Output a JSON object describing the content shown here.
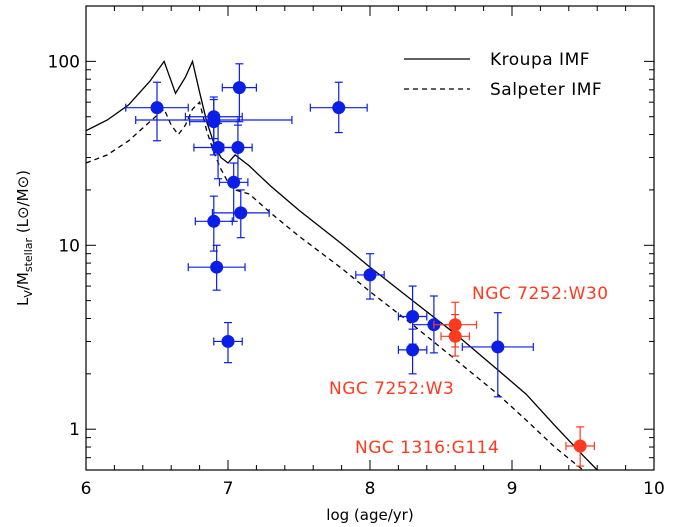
{
  "chart_data": {
    "type": "scatter",
    "xlabel": "log (age/yr)",
    "ylabel": {
      "main": "L",
      "sub_v": "V",
      "slash": "/M",
      "sub_stellar": "stellar",
      "units": "(L⊙/M⊙)"
    },
    "xlim": [
      6,
      10
    ],
    "ylim": [
      0.6,
      200
    ],
    "y_scale": "log",
    "x_ticks": [
      6,
      7,
      8,
      9,
      10
    ],
    "x_tick_labels": [
      "6",
      "7",
      "8",
      "9",
      "10"
    ],
    "y_ticks": [
      1,
      10,
      100
    ],
    "y_tick_labels": [
      "1",
      "10",
      "100"
    ],
    "legend": {
      "position": "top-right",
      "entries": [
        {
          "label": "Kroupa IMF",
          "style": "solid"
        },
        {
          "label": "Salpeter IMF",
          "style": "dashed"
        }
      ]
    },
    "lines": [
      {
        "name": "Kroupa IMF",
        "style": "solid",
        "x": [
          6.0,
          6.15,
          6.3,
          6.45,
          6.55,
          6.6,
          6.63,
          6.7,
          6.75,
          6.8,
          6.85,
          6.9,
          6.95,
          7.0,
          7.05,
          7.15,
          7.3,
          7.5,
          7.8,
          8.0,
          8.3,
          8.6,
          8.9,
          9.1,
          9.3,
          9.5,
          9.6
        ],
        "y": [
          42,
          48,
          58,
          78,
          100,
          78,
          67,
          82,
          100,
          68,
          47,
          36,
          30,
          28,
          31,
          27,
          21,
          15.5,
          10.2,
          7.6,
          5.0,
          3.3,
          2.1,
          1.55,
          1.05,
          0.72,
          0.6
        ]
      },
      {
        "name": "Salpeter IMF",
        "style": "dashed",
        "x": [
          6.0,
          6.15,
          6.3,
          6.45,
          6.55,
          6.6,
          6.65,
          6.7,
          6.75,
          6.8,
          6.85,
          6.9,
          6.95,
          7.0,
          7.05,
          7.15,
          7.3,
          7.5,
          7.8,
          8.0,
          8.3,
          8.6,
          8.9,
          9.1,
          9.3,
          9.5
        ],
        "y": [
          28,
          31,
          37,
          47,
          55,
          45,
          40,
          45,
          55,
          60,
          42,
          32,
          26,
          22,
          20,
          19,
          15,
          11.2,
          7.5,
          5.6,
          3.7,
          2.4,
          1.55,
          1.12,
          0.8,
          0.6
        ]
      }
    ],
    "series": [
      {
        "color": "#0a1ee6",
        "points": [
          {
            "x": 6.5,
            "y": 56,
            "xerr": 0.22,
            "ylo": 37,
            "yhi": 77
          },
          {
            "x": 7.08,
            "y": 72,
            "xerr": 0.12,
            "ylo": 47,
            "yhi": 97
          },
          {
            "x": 6.9,
            "y": 50,
            "xerr": 0.2,
            "ylo": 38,
            "yhi": 64
          },
          {
            "x": 6.9,
            "y": 47,
            "xerr": 0.17,
            "ylo": 31,
            "yhi": 62
          },
          {
            "x": 6.9,
            "y": 48,
            "xerr": 0.55,
            "ylo": 46,
            "yhi": 50
          },
          {
            "x": 7.78,
            "y": 56,
            "xerr": 0.2,
            "ylo": 41,
            "yhi": 77
          },
          {
            "x": 6.93,
            "y": 34,
            "xerr": 0.17,
            "ylo": 23,
            "yhi": 46
          },
          {
            "x": 7.07,
            "y": 34,
            "xerr": 0.1,
            "ylo": 23,
            "yhi": 45
          },
          {
            "x": 7.04,
            "y": 22,
            "xerr": 0.1,
            "ylo": 13.5,
            "yhi": 28
          },
          {
            "x": 6.9,
            "y": 13.5,
            "xerr": 0.13,
            "ylo": 9.3,
            "yhi": 18.5
          },
          {
            "x": 7.09,
            "y": 15,
            "xerr": 0.2,
            "ylo": 11,
            "yhi": 20
          },
          {
            "x": 6.92,
            "y": 7.6,
            "xerr": 0.2,
            "ylo": 5.7,
            "yhi": 10
          },
          {
            "x": 7.0,
            "y": 3.0,
            "xerr": 0.1,
            "ylo": 2.3,
            "yhi": 3.8
          },
          {
            "x": 8.0,
            "y": 6.9,
            "xerr": 0.1,
            "ylo": 5.1,
            "yhi": 9.0
          },
          {
            "x": 8.3,
            "y": 4.1,
            "xerr": 0.1,
            "ylo": 2.9,
            "yhi": 6.0
          },
          {
            "x": 8.3,
            "y": 2.7,
            "xerr": 0.1,
            "ylo": 2.0,
            "yhi": 3.5
          },
          {
            "x": 8.45,
            "y": 3.7,
            "xerr": 0.15,
            "ylo": 2.6,
            "yhi": 5.3
          },
          {
            "x": 8.9,
            "y": 2.8,
            "xerr": 0.25,
            "ylo": 1.5,
            "yhi": 4.3
          }
        ]
      },
      {
        "color": "#ff3a1e",
        "points": [
          {
            "x": 8.6,
            "y": 3.7,
            "xerr": 0.15,
            "ylo": 2.8,
            "yhi": 4.9
          },
          {
            "x": 8.6,
            "y": 3.2,
            "xerr": 0.1,
            "ylo": 2.5,
            "yhi": 4.2
          },
          {
            "x": 9.48,
            "y": 0.81,
            "xerr": 0.1,
            "ylo": 0.63,
            "yhi": 1.03
          }
        ]
      }
    ],
    "annotations": [
      {
        "text": "NGC 7252:W30",
        "color": "#ff3a1e"
      },
      {
        "text": "NGC 7252:W3",
        "color": "#ff3a1e"
      },
      {
        "text": "NGC 1316:G114",
        "color": "#ff3a1e"
      }
    ]
  }
}
